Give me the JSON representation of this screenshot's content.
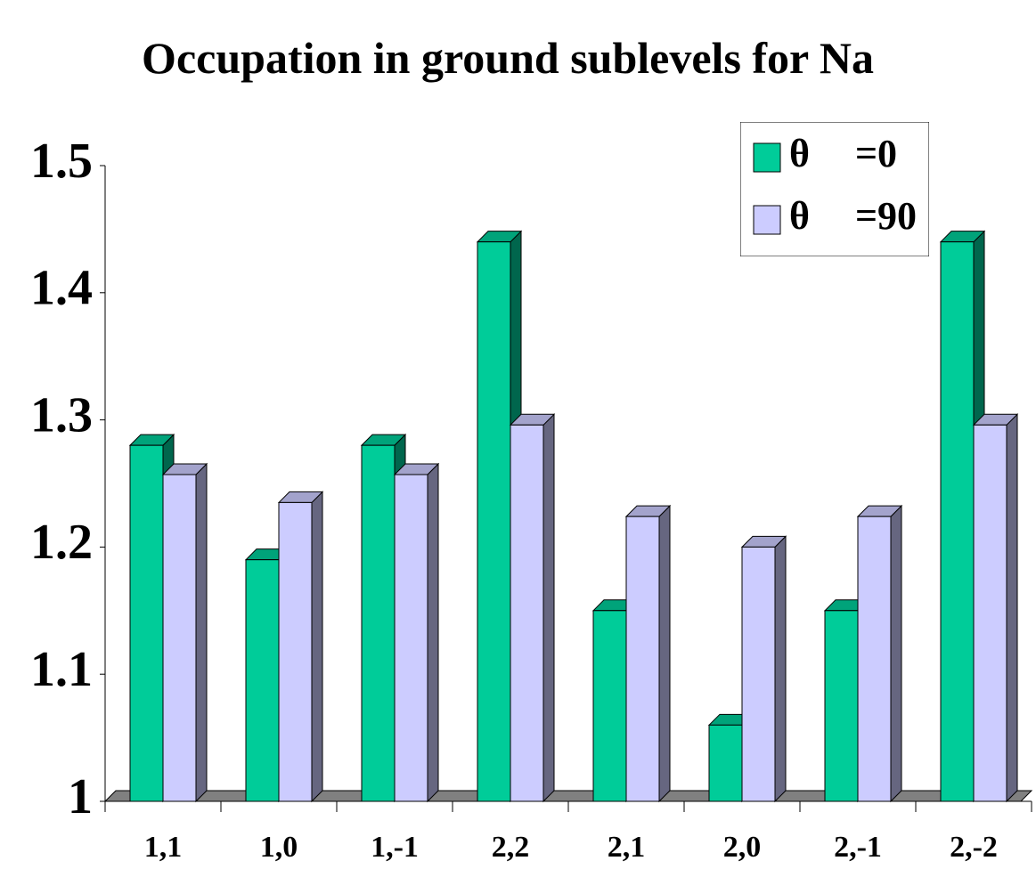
{
  "chart_data": {
    "type": "bar3d",
    "title": "Occupation in ground sublevels for Na",
    "categories": [
      "1,1",
      "1,0",
      "1,-1",
      "2,2",
      "2,1",
      "2,0",
      "2,-1",
      "2,-2"
    ],
    "series": [
      {
        "name": "θ =0",
        "color": "#00cc99",
        "values": [
          1.28,
          1.19,
          1.28,
          1.44,
          1.15,
          1.06,
          1.15,
          1.44
        ]
      },
      {
        "name": "θ =90",
        "color": "#ccccff",
        "values": [
          1.257,
          1.235,
          1.257,
          1.296,
          1.224,
          1.2,
          1.224,
          1.296
        ]
      }
    ],
    "ylim": [
      1,
      1.5
    ],
    "yticks": [
      1,
      1.1,
      1.2,
      1.3,
      1.4,
      1.5
    ],
    "legend": "top-right"
  }
}
